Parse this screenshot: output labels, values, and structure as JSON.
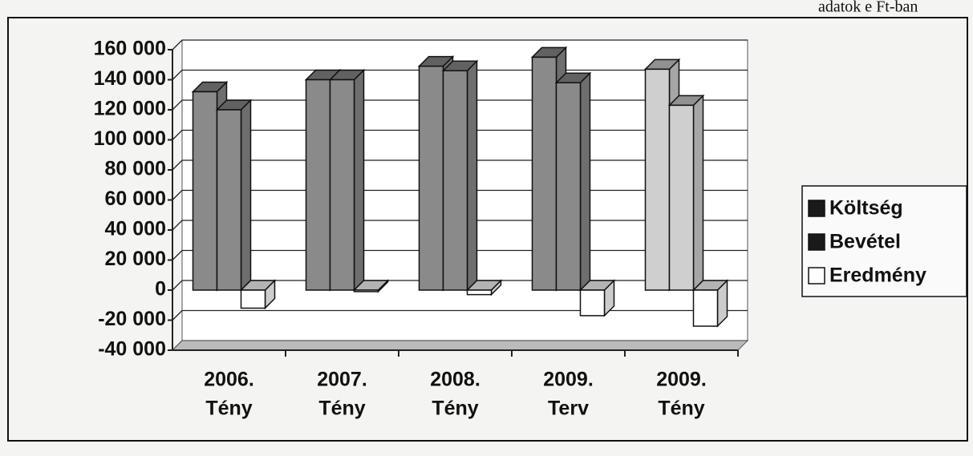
{
  "chart_data": {
    "type": "bar3d",
    "annotation": "adatok e Ft-ban",
    "categories": [
      [
        "2006.",
        "Tény"
      ],
      [
        "2007.",
        "Tény"
      ],
      [
        "2008.",
        "Tény"
      ],
      [
        "2009.",
        "Terv"
      ],
      [
        "2009.",
        "Tény"
      ]
    ],
    "series": [
      {
        "name": "Költség",
        "color": "#8a8a8a",
        "values": [
          132000,
          140000,
          149000,
          155000,
          147000
        ]
      },
      {
        "name": "Bevétel",
        "color": "#8a8a8a",
        "values": [
          120000,
          140000,
          146000,
          138000,
          123000
        ]
      },
      {
        "name": "Eredmény",
        "color": "#ffffff",
        "values": [
          -12000,
          -1000,
          -3000,
          -17000,
          -24000
        ]
      }
    ],
    "highlight_category": 4,
    "highlight_color": "#cfcfcf",
    "legend_swatch_colors": [
      "#1a1a1a",
      "#1a1a1a",
      "#ffffff"
    ],
    "ylim": [
      -40000,
      160000
    ],
    "yticks": [
      {
        "value": -40000,
        "label": "-40 000"
      },
      {
        "value": -20000,
        "label": "-20 000"
      },
      0,
      {
        "value": 20000,
        "label": "20 000"
      },
      {
        "value": 40000,
        "label": "40 000"
      },
      {
        "value": 60000,
        "label": "60 000"
      },
      {
        "value": 80000,
        "label": "80 000"
      },
      {
        "value": 100000,
        "label": "100 000"
      },
      {
        "value": 120000,
        "label": "120 000"
      },
      {
        "value": 140000,
        "label": "140 000"
      },
      {
        "value": 160000,
        "label": "160 000"
      }
    ],
    "grid": true,
    "legend": "right"
  }
}
